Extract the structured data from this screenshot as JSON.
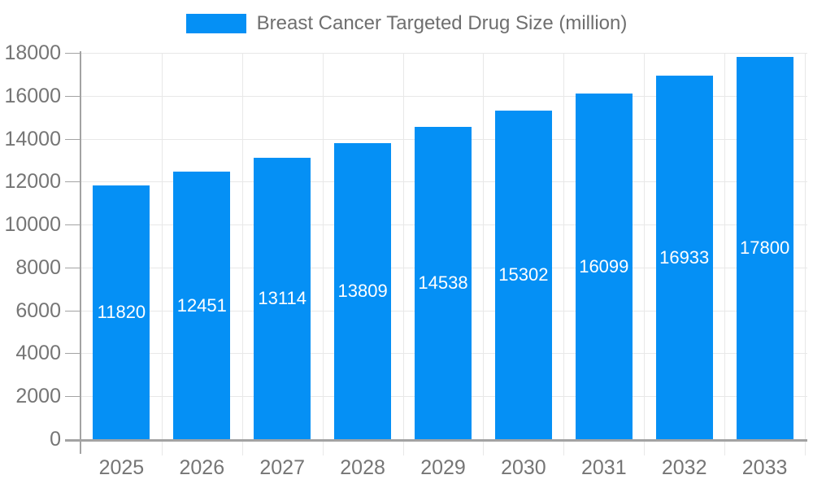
{
  "chart_data": {
    "type": "bar",
    "title": "Breast Cancer Targeted Drug Size (million)",
    "legend_position": "top",
    "grid": true,
    "categories": [
      "2025",
      "2026",
      "2027",
      "2028",
      "2029",
      "2030",
      "2031",
      "2032",
      "2033"
    ],
    "values": [
      11820,
      12451,
      13114,
      13809,
      14538,
      15302,
      16099,
      16933,
      17800
    ],
    "xlabel": "",
    "ylabel": "",
    "ylim": [
      0,
      18000
    ],
    "yticks": [
      0,
      2000,
      4000,
      6000,
      8000,
      10000,
      12000,
      14000,
      16000,
      18000
    ],
    "colors": {
      "bar": "#0590f5",
      "value_label": "#ffffff",
      "axis": "#a3a3a3",
      "grid": "#e8e8e8",
      "tick_label": "#757575",
      "legend_label": "#6f6f6f",
      "background": "#ffffff"
    }
  }
}
